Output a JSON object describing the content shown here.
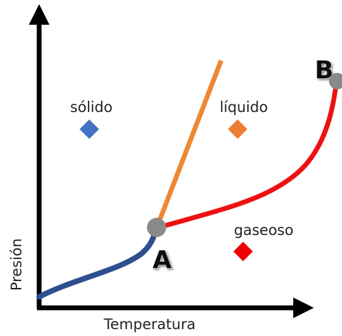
{
  "regions": [
    {
      "label": "sólido"
    },
    {
      "label": "líquido"
    },
    {
      "label": "gaseoso"
    }
  ],
  "points": [
    {
      "label": "A"
    },
    {
      "label": "B"
    }
  ],
  "axes": {
    "y_label": "Presión",
    "x_label": "Temperatura"
  }
}
